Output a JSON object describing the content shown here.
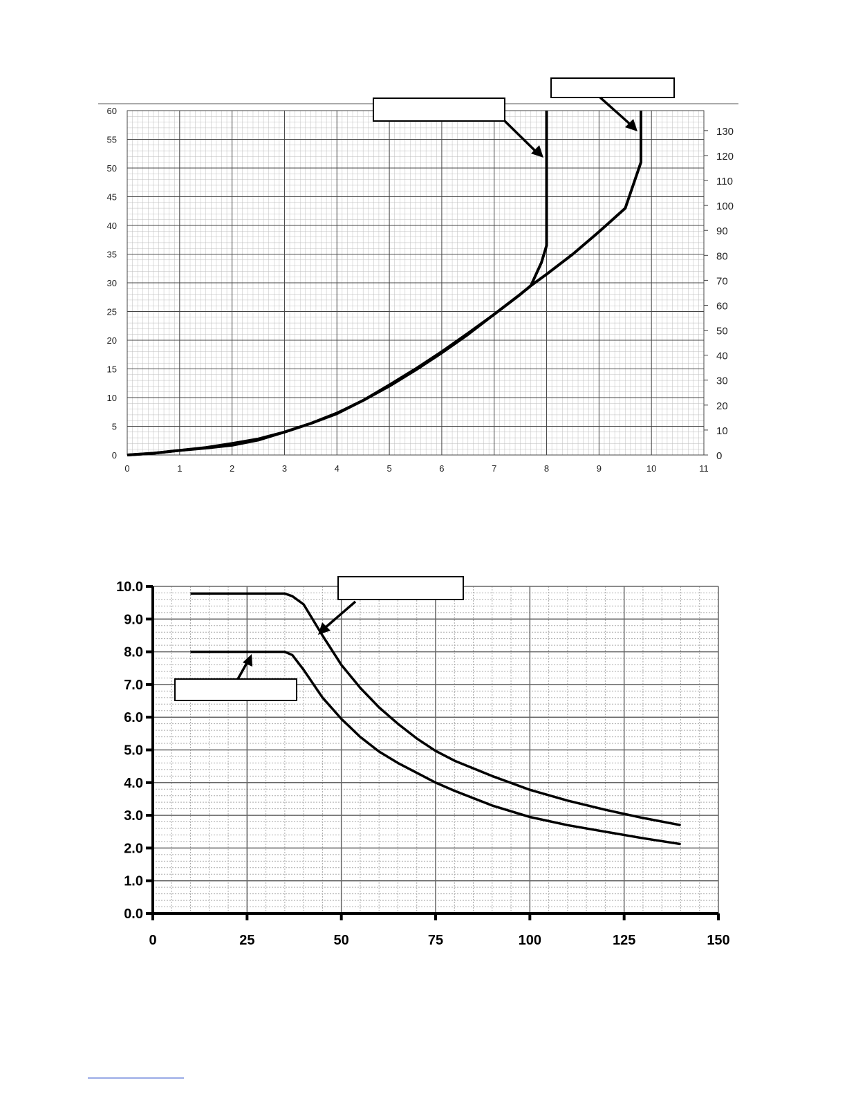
{
  "chart_data": [
    {
      "type": "line",
      "title": "",
      "xlabel": "",
      "ylabel": "",
      "y2label": "",
      "xlim": [
        0,
        11
      ],
      "ylim": [
        0,
        60
      ],
      "y2lim": [
        0,
        138
      ],
      "x_ticks": [
        0,
        1,
        2,
        3,
        4,
        5,
        6,
        7,
        8,
        9,
        10,
        11
      ],
      "y_ticks": [
        0,
        5,
        10,
        15,
        20,
        25,
        30,
        35,
        40,
        45,
        50,
        55,
        60
      ],
      "y2_ticks": [
        0,
        10,
        20,
        30,
        40,
        50,
        60,
        70,
        80,
        90,
        100,
        110,
        120,
        130
      ],
      "grid": true,
      "series": [
        {
          "name": "",
          "label": "",
          "axis": "y",
          "x": [
            0,
            0.5,
            1,
            1.5,
            2,
            2.5,
            3,
            3.5,
            4,
            4.5,
            5,
            5.5,
            6,
            6.5,
            7,
            7.5,
            7.7,
            7.9,
            8,
            8,
            8
          ],
          "y": [
            0,
            0.3,
            0.8,
            1.3,
            2.0,
            2.8,
            4.0,
            5.5,
            7.2,
            9.5,
            12.0,
            14.8,
            17.8,
            21.0,
            24.5,
            28.0,
            29.5,
            33.5,
            36.5,
            50,
            60
          ]
        },
        {
          "name": "",
          "label": "",
          "axis": "y",
          "x": [
            0,
            0.5,
            1,
            1.5,
            2,
            2.5,
            3,
            3.5,
            4,
            4.5,
            5,
            5.5,
            6,
            6.5,
            7,
            7.5,
            7.7,
            8,
            8.5,
            9,
            9.5,
            9.8,
            9.8,
            9.8
          ],
          "y": [
            0,
            0.3,
            0.8,
            1.2,
            1.7,
            2.6,
            4.0,
            5.5,
            7.3,
            9.5,
            12.2,
            15.0,
            18.0,
            21.2,
            24.5,
            28.0,
            29.5,
            31.5,
            35.0,
            38.9,
            43.0,
            51.0,
            55,
            60
          ]
        }
      ]
    },
    {
      "type": "line",
      "title": "",
      "xlabel": "",
      "ylabel": "",
      "xlim": [
        0,
        150
      ],
      "ylim": [
        0,
        10
      ],
      "x_ticks": [
        0,
        25,
        50,
        75,
        100,
        125,
        150
      ],
      "y_ticks": [
        0.0,
        1.0,
        2.0,
        3.0,
        4.0,
        5.0,
        6.0,
        7.0,
        8.0,
        9.0,
        10.0
      ],
      "x_tick_labels": [
        "0",
        "25",
        "50",
        "75",
        "100",
        "125",
        "150"
      ],
      "y_tick_labels": [
        "0.0",
        "1.0",
        "2.0",
        "3.0",
        "4.0",
        "5.0",
        "6.0",
        "7.0",
        "8.0",
        "9.0",
        "10.0"
      ],
      "grid": true,
      "series": [
        {
          "name": "",
          "label": "",
          "x": [
            10,
            20,
            30,
            35,
            37,
            40,
            45,
            50,
            55,
            60,
            65,
            70,
            75,
            80,
            90,
            100,
            110,
            120,
            130,
            140
          ],
          "y": [
            9.78,
            9.78,
            9.78,
            9.78,
            9.7,
            9.45,
            8.5,
            7.6,
            6.9,
            6.3,
            5.8,
            5.35,
            4.97,
            4.67,
            4.2,
            3.78,
            3.45,
            3.17,
            2.92,
            2.7
          ]
        },
        {
          "name": "",
          "label": "",
          "x": [
            10,
            20,
            30,
            35,
            37,
            40,
            45,
            50,
            55,
            60,
            65,
            70,
            75,
            80,
            90,
            100,
            110,
            120,
            130,
            140
          ],
          "y": [
            8.0,
            8.0,
            8.0,
            8.0,
            7.9,
            7.45,
            6.6,
            5.95,
            5.4,
            4.95,
            4.6,
            4.3,
            4.0,
            3.75,
            3.3,
            2.95,
            2.7,
            2.5,
            2.3,
            2.12
          ]
        }
      ]
    }
  ]
}
